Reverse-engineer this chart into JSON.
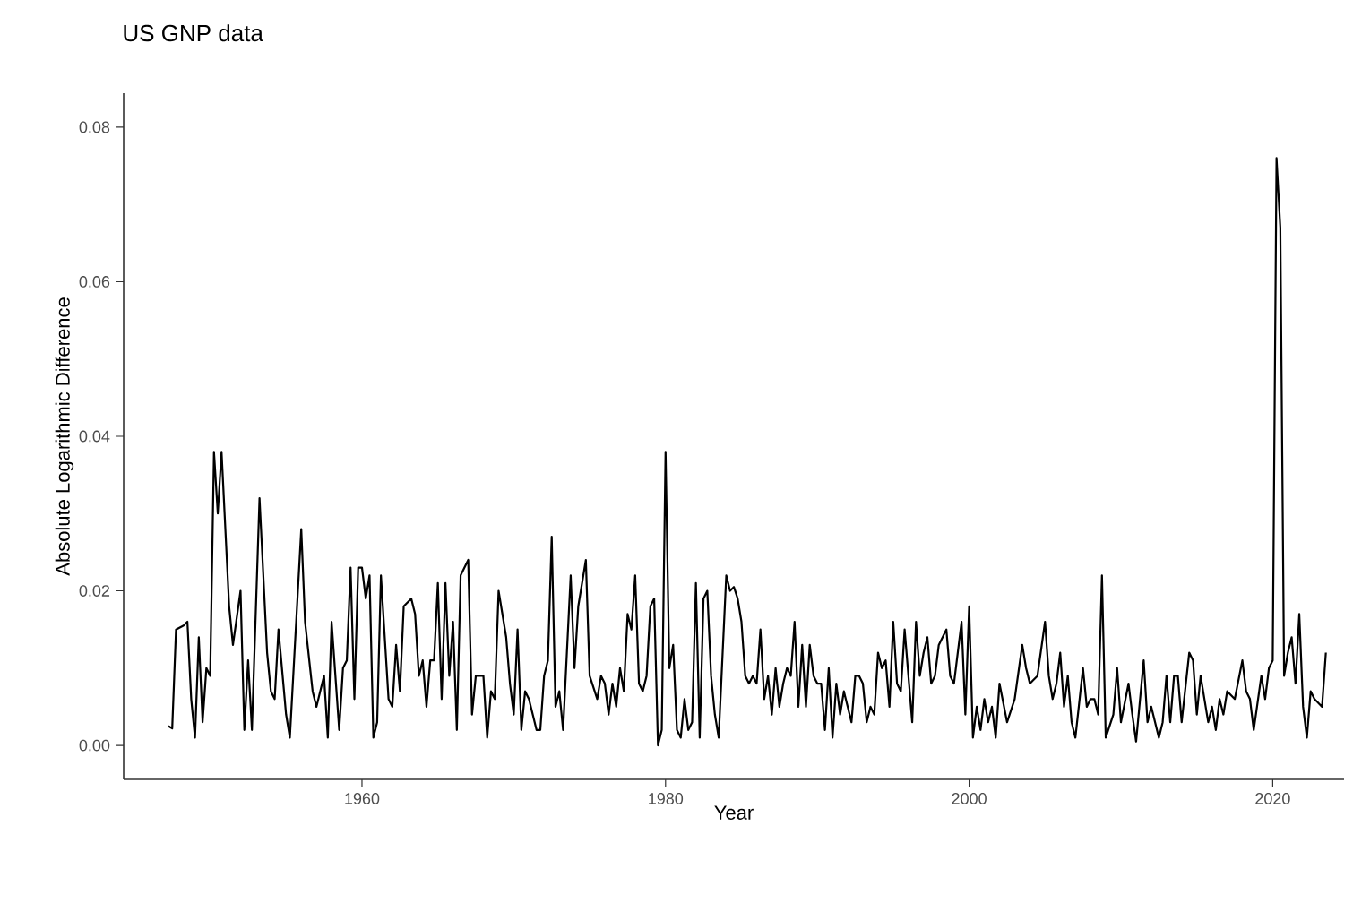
{
  "chart_data": {
    "type": "line",
    "subtitle": "US GNP data",
    "xlabel": "Year",
    "ylabel": "Absolute Logarithmic Difference",
    "color": "#000000",
    "x": [
      1947.25,
      1947.5,
      1947.75,
      1948.25,
      1948.5,
      1948.75,
      1949.0,
      1949.25,
      1949.5,
      1949.75,
      1950.0,
      1950.25,
      1950.5,
      1950.75,
      1951.25,
      1951.5,
      1952.0,
      1952.25,
      1952.5,
      1952.75,
      1953.25,
      1953.75,
      1954.0,
      1954.25,
      1954.5,
      1955.0,
      1955.25,
      1956.0,
      1956.25,
      1956.75,
      1957.0,
      1957.5,
      1957.75,
      1958.0,
      1958.5,
      1958.75,
      1959.0,
      1959.25,
      1959.5,
      1959.75,
      1960.0,
      1960.25,
      1960.5,
      1960.75,
      1961.0,
      1961.25,
      1961.75,
      1962.0,
      1962.25,
      1962.5,
      1962.75,
      1963.25,
      1963.5,
      1963.75,
      1964.0,
      1964.25,
      1964.5,
      1964.75,
      1965.0,
      1965.25,
      1965.5,
      1965.75,
      1966.0,
      1966.25,
      1966.5,
      1966.75,
      1967.0,
      1967.25,
      1967.5,
      1968.0,
      1968.25,
      1968.5,
      1968.75,
      1969.0,
      1969.5,
      1969.75,
      1970.0,
      1970.25,
      1970.5,
      1970.75,
      1971.0,
      1971.5,
      1971.75,
      1972.0,
      1972.25,
      1972.5,
      1972.75,
      1973.0,
      1973.25,
      1973.75,
      1974.0,
      1974.25,
      1974.75,
      1975.0,
      1975.5,
      1975.75,
      1976.0,
      1976.25,
      1976.5,
      1976.75,
      1977.0,
      1977.25,
      1977.5,
      1977.75,
      1978.0,
      1978.25,
      1978.5,
      1978.75,
      1979.0,
      1979.25,
      1979.5,
      1979.75,
      1980.0,
      1980.25,
      1980.5,
      1980.75,
      1981.0,
      1981.25,
      1981.5,
      1981.75,
      1982.0,
      1982.25,
      1982.5,
      1982.75,
      1983.0,
      1983.25,
      1983.5,
      1984.0,
      1984.25,
      1984.5,
      1984.75,
      1985.0,
      1985.25,
      1985.5,
      1985.75,
      1986.0,
      1986.25,
      1986.5,
      1986.75,
      1987.0,
      1987.25,
      1987.5,
      1987.75,
      1988.0,
      1988.25,
      1988.5,
      1988.75,
      1989.0,
      1989.25,
      1989.5,
      1989.75,
      1990.0,
      1990.25,
      1990.5,
      1990.75,
      1991.0,
      1991.25,
      1991.5,
      1991.75,
      1992.0,
      1992.25,
      1992.5,
      1992.75,
      1993.0,
      1993.25,
      1993.5,
      1993.75,
      1994.0,
      1994.25,
      1994.5,
      1994.75,
      1995.0,
      1995.25,
      1995.5,
      1995.75,
      1996.0,
      1996.25,
      1996.5,
      1996.75,
      1997.0,
      1997.25,
      1997.5,
      1997.75,
      1998.0,
      1998.5,
      1998.75,
      1999.0,
      1999.5,
      1999.75,
      2000.0,
      2000.25,
      2000.5,
      2000.75,
      2001.0,
      2001.25,
      2001.5,
      2001.75,
      2002.0,
      2002.5,
      2003.0,
      2003.5,
      2003.75,
      2004.0,
      2004.5,
      2005.0,
      2005.25,
      2005.5,
      2005.75,
      2006.0,
      2006.25,
      2006.5,
      2006.75,
      2007.0,
      2007.5,
      2007.75,
      2008.0,
      2008.25,
      2008.5,
      2008.75,
      2009.0,
      2009.5,
      2009.75,
      2010.0,
      2010.5,
      2010.75,
      2011.0,
      2011.5,
      2011.75,
      2012.0,
      2012.5,
      2012.75,
      2013.0,
      2013.25,
      2013.5,
      2013.75,
      2014.0,
      2014.5,
      2014.75,
      2015.0,
      2015.25,
      2015.5,
      2015.75,
      2016.0,
      2016.25,
      2016.5,
      2016.75,
      2017.0,
      2017.5,
      2018.0,
      2018.25,
      2018.5,
      2018.75,
      2019.25,
      2019.5,
      2019.75,
      2020.0,
      2020.25,
      2020.5,
      2020.75,
      2021.0,
      2021.25,
      2021.5,
      2021.75,
      2022.0,
      2022.25,
      2022.5,
      2022.75,
      2023.25,
      2023.5
    ],
    "values": [
      0.0025,
      0.0022,
      0.015,
      0.0155,
      0.016,
      0.006,
      0.001,
      0.014,
      0.003,
      0.01,
      0.009,
      0.038,
      0.03,
      0.038,
      0.018,
      0.013,
      0.02,
      0.002,
      0.011,
      0.002,
      0.032,
      0.012,
      0.007,
      0.006,
      0.015,
      0.004,
      0.001,
      0.028,
      0.016,
      0.007,
      0.005,
      0.009,
      0.001,
      0.016,
      0.002,
      0.01,
      0.011,
      0.023,
      0.006,
      0.023,
      0.023,
      0.019,
      0.022,
      0.001,
      0.003,
      0.022,
      0.006,
      0.005,
      0.013,
      0.007,
      0.018,
      0.019,
      0.017,
      0.009,
      0.011,
      0.005,
      0.011,
      0.011,
      0.021,
      0.006,
      0.021,
      0.009,
      0.016,
      0.002,
      0.022,
      0.023,
      0.024,
      0.004,
      0.009,
      0.009,
      0.001,
      0.007,
      0.006,
      0.02,
      0.014,
      0.008,
      0.004,
      0.015,
      0.002,
      0.007,
      0.006,
      0.002,
      0.002,
      0.009,
      0.011,
      0.027,
      0.005,
      0.007,
      0.002,
      0.022,
      0.01,
      0.018,
      0.024,
      0.009,
      0.006,
      0.009,
      0.008,
      0.004,
      0.008,
      0.005,
      0.01,
      0.007,
      0.017,
      0.015,
      0.022,
      0.008,
      0.007,
      0.009,
      0.018,
      0.019,
      0.0,
      0.002,
      0.038,
      0.01,
      0.013,
      0.002,
      0.001,
      0.006,
      0.002,
      0.003,
      0.021,
      0.001,
      0.019,
      0.02,
      0.009,
      0.004,
      0.001,
      0.022,
      0.02,
      0.0205,
      0.019,
      0.016,
      0.009,
      0.008,
      0.009,
      0.008,
      0.015,
      0.006,
      0.009,
      0.004,
      0.01,
      0.005,
      0.008,
      0.01,
      0.009,
      0.016,
      0.005,
      0.013,
      0.005,
      0.013,
      0.009,
      0.008,
      0.008,
      0.002,
      0.01,
      0.001,
      0.008,
      0.004,
      0.007,
      0.005,
      0.003,
      0.009,
      0.009,
      0.008,
      0.003,
      0.005,
      0.004,
      0.012,
      0.01,
      0.011,
      0.005,
      0.016,
      0.008,
      0.007,
      0.015,
      0.009,
      0.003,
      0.016,
      0.009,
      0.012,
      0.014,
      0.008,
      0.009,
      0.013,
      0.015,
      0.009,
      0.008,
      0.016,
      0.004,
      0.018,
      0.001,
      0.005,
      0.002,
      0.006,
      0.003,
      0.005,
      0.001,
      0.008,
      0.003,
      0.006,
      0.013,
      0.01,
      0.008,
      0.009,
      0.016,
      0.009,
      0.006,
      0.008,
      0.012,
      0.005,
      0.009,
      0.003,
      0.001,
      0.01,
      0.005,
      0.006,
      0.006,
      0.004,
      0.022,
      0.001,
      0.004,
      0.01,
      0.003,
      0.008,
      0.004,
      0.0005,
      0.011,
      0.003,
      0.005,
      0.001,
      0.003,
      0.009,
      0.003,
      0.009,
      0.009,
      0.003,
      0.012,
      0.011,
      0.004,
      0.009,
      0.006,
      0.003,
      0.005,
      0.002,
      0.006,
      0.004,
      0.007,
      0.006,
      0.011,
      0.007,
      0.006,
      0.002,
      0.009,
      0.006,
      0.01,
      0.011,
      0.076,
      0.067,
      0.009,
      0.012,
      0.014,
      0.008,
      0.017,
      0.005,
      0.001,
      0.007,
      0.006,
      0.005,
      0.012
    ],
    "xlim": [
      1944.3,
      2024.7
    ],
    "ylim": [
      -0.0044,
      0.0844
    ],
    "xticks": [
      1960,
      1980,
      2000,
      2020
    ],
    "yticks": [
      {
        "value": 0,
        "label": "0.00"
      },
      {
        "value": 0.02,
        "label": "0.02"
      },
      {
        "value": 0.04,
        "label": "0.04"
      },
      {
        "value": 0.06,
        "label": "0.06"
      },
      {
        "value": 0.08,
        "label": "0.08"
      }
    ],
    "grid": false,
    "line_style": "solid"
  }
}
